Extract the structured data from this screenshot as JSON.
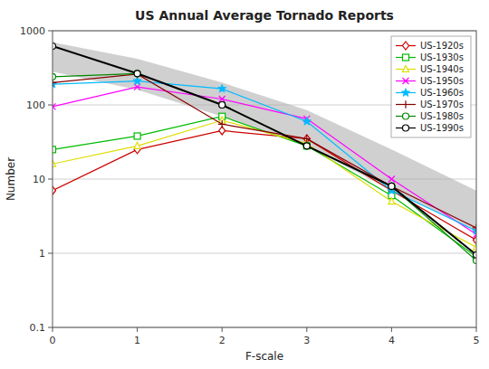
{
  "chart_data": {
    "type": "line",
    "title": "US Annual Average Tornado Reports",
    "xlabel": "F-scale",
    "ylabel": "Number",
    "x": [
      0,
      1,
      2,
      3,
      4,
      5
    ],
    "xlim": [
      0,
      5
    ],
    "xticks": [
      0,
      1,
      2,
      3,
      4,
      5
    ],
    "ylim": [
      0.1,
      1000
    ],
    "yticks": [
      0.1,
      1,
      10,
      100,
      1000
    ],
    "log": "y",
    "grid": true,
    "legend": "upper right",
    "band": {
      "upper": [
        700,
        420,
        200,
        85,
        25,
        7
      ],
      "lower": [
        280,
        160,
        70,
        28,
        7,
        2.0
      ],
      "color": "#aaaaaa"
    },
    "series": [
      {
        "name": "US-1920s",
        "color": "#cc0000",
        "marker": "diamond",
        "values": [
          7,
          25,
          45,
          35,
          7,
          1.5
        ]
      },
      {
        "name": "US-1930s",
        "color": "#00bb00",
        "marker": "square",
        "values": [
          25,
          38,
          70,
          28,
          6,
          0.9
        ]
      },
      {
        "name": "US-1940s",
        "color": "#dddd00",
        "marker": "triangle",
        "values": [
          16,
          28,
          62,
          30,
          5,
          1.2
        ]
      },
      {
        "name": "US-1950s",
        "color": "#ff00ff",
        "marker": "x",
        "values": [
          95,
          175,
          120,
          65,
          10,
          1.8
        ]
      },
      {
        "name": "US-1960s",
        "color": "#00bbff",
        "marker": "star",
        "values": [
          190,
          210,
          165,
          60,
          7,
          2.0
        ]
      },
      {
        "name": "US-1970s",
        "color": "#880000",
        "marker": "plus",
        "values": [
          200,
          260,
          55,
          35,
          8,
          2.2
        ]
      },
      {
        "name": "US-1980s",
        "color": "#008800",
        "marker": "circle",
        "values": [
          240,
          265,
          100,
          28,
          8,
          0.8
        ]
      },
      {
        "name": "US-1990s",
        "color": "#000000",
        "marker": "circle",
        "values": [
          620,
          265,
          100,
          28,
          8,
          0.95
        ]
      }
    ]
  }
}
